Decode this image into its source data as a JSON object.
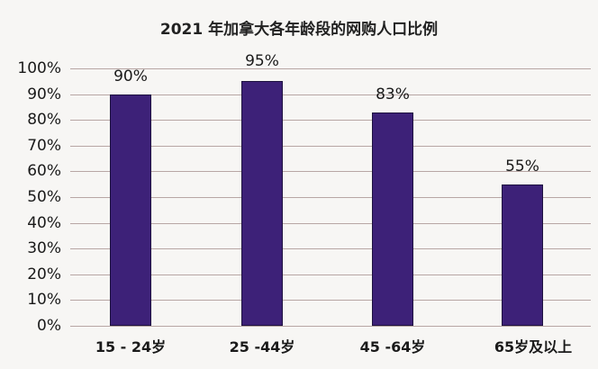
{
  "chart_data": {
    "type": "bar",
    "title": "2021 年加拿大各年龄段的网购人口比例",
    "xlabel": "",
    "ylabel": "",
    "categories": [
      "15 - 24岁",
      "25 -44岁",
      "45 -64岁",
      "65岁及以上"
    ],
    "values": [
      90,
      95,
      83,
      55
    ],
    "value_labels": [
      "90%",
      "95%",
      "83%",
      "55%"
    ],
    "ylim": [
      0,
      100
    ],
    "yticks": [
      "0%",
      "10%",
      "20%",
      "30%",
      "40%",
      "50%",
      "60%",
      "70%",
      "80%",
      "90%",
      "100%"
    ],
    "grid": true,
    "legend": null,
    "bar_color": "#3d2178"
  }
}
